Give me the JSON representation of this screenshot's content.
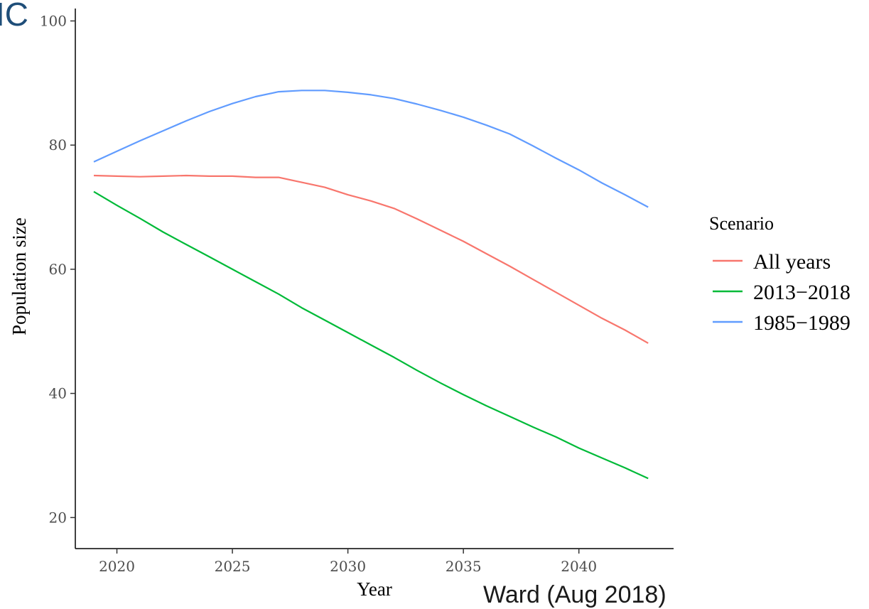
{
  "corner_label": "IC",
  "credit": "Ward (Aug 2018)",
  "chart_data": {
    "type": "line",
    "title": "",
    "xlabel": "Year",
    "ylabel": "Population size",
    "xlim": [
      2018.2,
      2044.1
    ],
    "ylim": [
      15,
      102
    ],
    "x_ticks": [
      2020,
      2025,
      2030,
      2035,
      2040
    ],
    "y_ticks": [
      20,
      40,
      60,
      80,
      100
    ],
    "grid": false,
    "legend": {
      "title": "Scenario",
      "position": "right"
    },
    "x": [
      2019,
      2020,
      2021,
      2022,
      2023,
      2024,
      2025,
      2026,
      2027,
      2028,
      2029,
      2030,
      2031,
      2032,
      2033,
      2034,
      2035,
      2036,
      2037,
      2038,
      2039,
      2040,
      2041,
      2042,
      2043
    ],
    "series": [
      {
        "name": "All years",
        "color": "#F8766D",
        "values": [
          75.1,
          75.0,
          74.9,
          75.0,
          75.1,
          75.0,
          75.0,
          74.8,
          74.8,
          74.0,
          73.2,
          72.0,
          71.0,
          69.8,
          68.1,
          66.3,
          64.5,
          62.5,
          60.5,
          58.4,
          56.3,
          54.2,
          52.1,
          50.2,
          48.1
        ]
      },
      {
        "name": "2013−2018",
        "color": "#00BA38",
        "values": [
          72.5,
          70.3,
          68.2,
          66.0,
          64.0,
          62.0,
          60.0,
          58.0,
          56.0,
          53.8,
          51.8,
          49.8,
          47.8,
          45.8,
          43.7,
          41.7,
          39.8,
          38.0,
          36.3,
          34.6,
          33.0,
          31.2,
          29.6,
          28.0,
          26.3
        ]
      },
      {
        "name": "1985−1989",
        "color": "#619CFF",
        "values": [
          77.3,
          79.0,
          80.7,
          82.3,
          83.9,
          85.4,
          86.7,
          87.8,
          88.6,
          88.8,
          88.8,
          88.5,
          88.1,
          87.5,
          86.6,
          85.6,
          84.5,
          83.2,
          81.8,
          79.9,
          77.9,
          76.0,
          73.9,
          72.0,
          70.0
        ]
      }
    ]
  }
}
